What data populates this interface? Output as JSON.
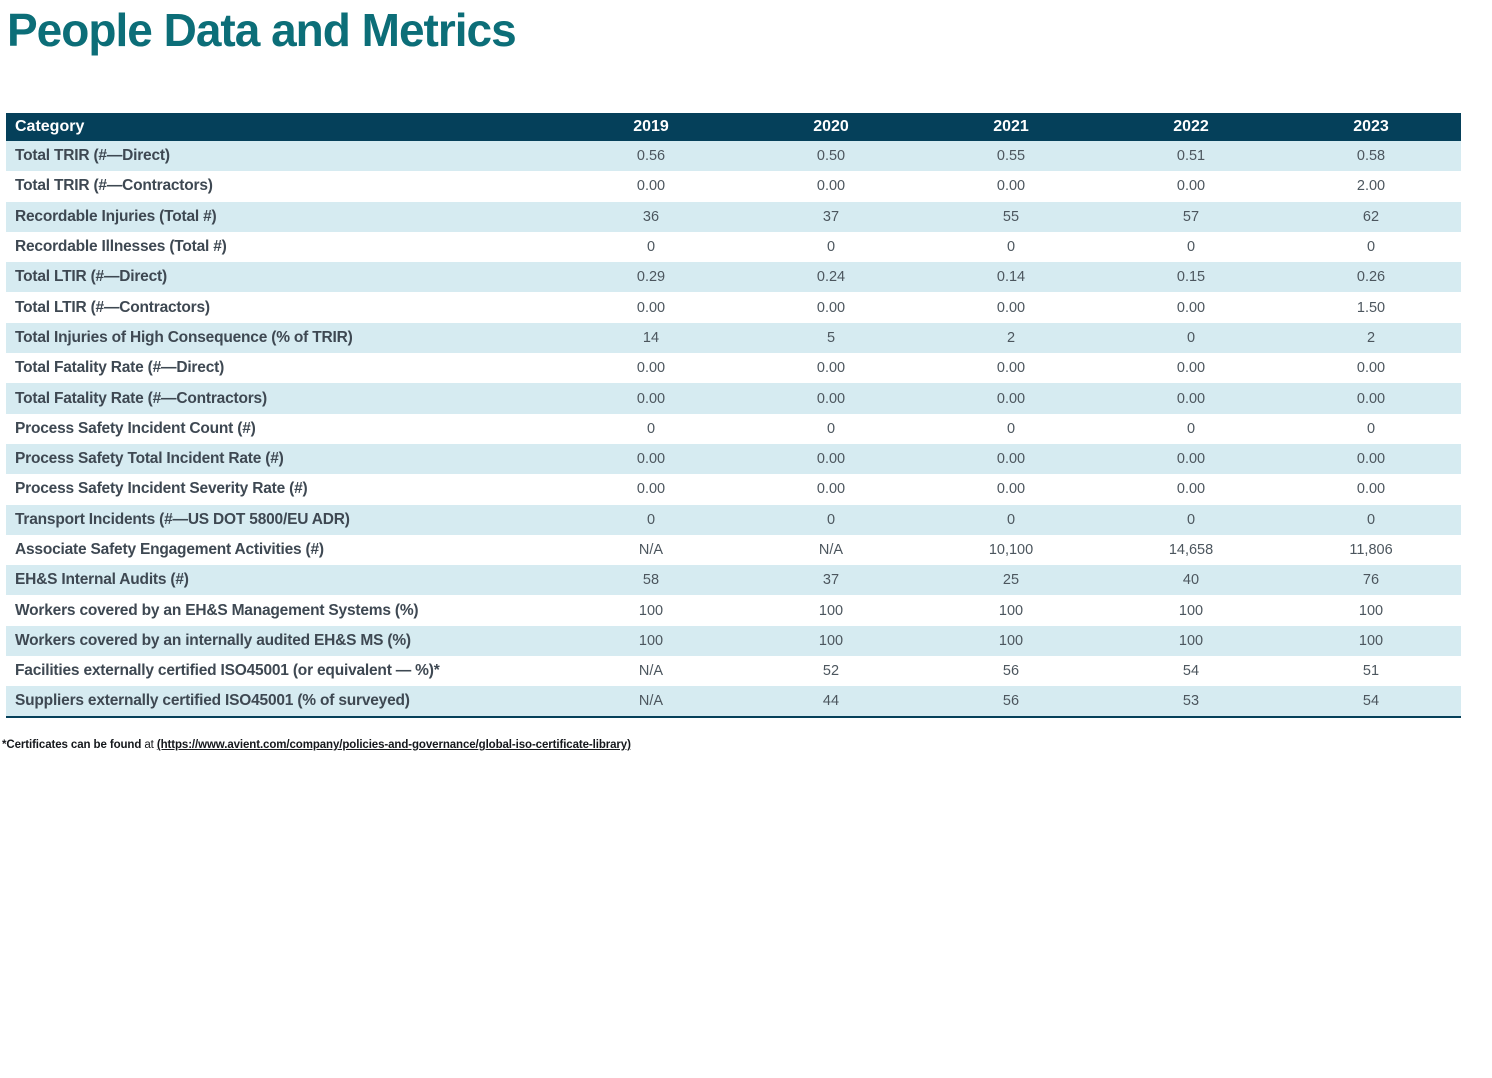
{
  "page": {
    "title": "People Data and Metrics"
  },
  "colors": {
    "accent_teal": "#0c6e78",
    "header_bg": "#05405a",
    "row_alt": "#d6ebf1"
  },
  "table": {
    "columns": [
      "Category",
      "2019",
      "2020",
      "2021",
      "2022",
      "2023"
    ],
    "rows": [
      {
        "category": "Total TRIR (#—Direct)",
        "values": [
          "0.56",
          "0.50",
          "0.55",
          "0.51",
          "0.58"
        ]
      },
      {
        "category": "Total TRIR (#—Contractors)",
        "values": [
          "0.00",
          "0.00",
          "0.00",
          "0.00",
          "2.00"
        ]
      },
      {
        "category": "Recordable Injuries (Total #)",
        "values": [
          "36",
          "37",
          "55",
          "57",
          "62"
        ]
      },
      {
        "category": "Recordable Illnesses (Total #)",
        "values": [
          "0",
          "0",
          "0",
          "0",
          "0"
        ]
      },
      {
        "category": "Total LTIR (#—Direct)",
        "values": [
          "0.29",
          "0.24",
          "0.14",
          "0.15",
          "0.26"
        ]
      },
      {
        "category": "Total LTIR (#—Contractors)",
        "values": [
          "0.00",
          "0.00",
          "0.00",
          "0.00",
          "1.50"
        ]
      },
      {
        "category": "Total Injuries of High Consequence (% of TRIR)",
        "values": [
          "14",
          "5",
          "2",
          "0",
          "2"
        ]
      },
      {
        "category": "Total Fatality Rate (#—Direct)",
        "values": [
          "0.00",
          "0.00",
          "0.00",
          "0.00",
          "0.00"
        ]
      },
      {
        "category": "Total Fatality Rate (#—Contractors)",
        "values": [
          "0.00",
          "0.00",
          "0.00",
          "0.00",
          "0.00"
        ]
      },
      {
        "category": "Process Safety Incident Count (#)",
        "values": [
          "0",
          "0",
          "0",
          "0",
          "0"
        ]
      },
      {
        "category": "Process Safety Total Incident Rate (#)",
        "values": [
          "0.00",
          "0.00",
          "0.00",
          "0.00",
          "0.00"
        ]
      },
      {
        "category": "Process Safety Incident Severity Rate (#)",
        "values": [
          "0.00",
          "0.00",
          "0.00",
          "0.00",
          "0.00"
        ]
      },
      {
        "category": "Transport Incidents (#—US DOT 5800/EU ADR)",
        "values": [
          "0",
          "0",
          "0",
          "0",
          "0"
        ]
      },
      {
        "category": "Associate Safety Engagement Activities (#)",
        "values": [
          "N/A",
          "N/A",
          "10,100",
          "14,658",
          "11,806"
        ]
      },
      {
        "category": "EH&S Internal Audits (#)",
        "values": [
          "58",
          "37",
          "25",
          "40",
          "76"
        ]
      },
      {
        "category": "Workers covered by an EH&S Management Systems (%)",
        "values": [
          "100",
          "100",
          "100",
          "100",
          "100"
        ]
      },
      {
        "category": "Workers covered by an internally audited EH&S MS (%)",
        "values": [
          "100",
          "100",
          "100",
          "100",
          "100"
        ]
      },
      {
        "category": "Facilities externally certified ISO45001 (or equivalent — %)*",
        "values": [
          "N/A",
          "52",
          "56",
          "54",
          "51"
        ]
      },
      {
        "category": "Suppliers externally certified ISO45001 (% of surveyed)",
        "values": [
          "N/A",
          "44",
          "56",
          "53",
          "54"
        ]
      }
    ]
  },
  "footnote": {
    "prefix": "*Certificates can be found",
    "connector": " at ",
    "link_text": "(https://www.avient.com/company/policies-and-governance/global-iso-certificate-library)"
  }
}
